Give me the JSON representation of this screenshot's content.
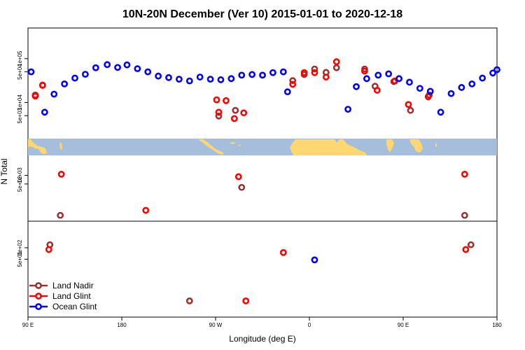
{
  "chart_data": {
    "type": "scatter",
    "title": "10N-20N December (Ver 10)   2015-01-01 to 2020-12-18",
    "xlabel": "Longitude (deg E)",
    "ylabel": "N Total",
    "x_ticks": [
      {
        "value": 90,
        "label": "90 E"
      },
      {
        "value": 180,
        "label": "180"
      },
      {
        "value": 270,
        "label": "90 W"
      },
      {
        "value": 360,
        "label": "0"
      },
      {
        "value": 450,
        "label": "90 E"
      },
      {
        "value": 540,
        "label": "180"
      }
    ],
    "xlim": [
      90,
      540
    ],
    "panels": [
      {
        "name": "upper",
        "scale": "log",
        "ylim": [
          1500,
          500000
        ],
        "ticks": [
          {
            "value": 5000,
            "label": "5e+03"
          },
          {
            "value": 10000,
            "label": "1e+04"
          },
          {
            "value": 50000,
            "label": "5e+04"
          },
          {
            "value": 100000,
            "label": "1e+05"
          }
        ]
      },
      {
        "name": "middle",
        "scale": "log",
        "ylim": [
          25,
          5000
        ],
        "ticks": [
          {
            "value": 500,
            "label": "5e+02"
          },
          {
            "value": 1000,
            "label": "1e+03"
          }
        ]
      },
      {
        "name": "lower",
        "scale": "log",
        "ylim": [
          1.5,
          500
        ],
        "ticks": [
          {
            "value": 50,
            "label": "5e+01"
          },
          {
            "value": 100,
            "label": "1e+02"
          }
        ]
      }
    ],
    "series": [
      {
        "name": "Land Nadir",
        "color": "#993333",
        "points": [
          [
            97,
            14800,
            "upper"
          ],
          [
            104,
            24500,
            "upper"
          ],
          [
            121,
            40,
            "middle"
          ],
          [
            273,
            4900,
            "upper"
          ],
          [
            289,
            6600,
            "upper"
          ],
          [
            295,
            380,
            "middle"
          ],
          [
            245,
            4,
            "lower"
          ],
          [
            111,
            120,
            "lower"
          ],
          [
            344,
            31500,
            "upper"
          ],
          [
            355,
            43500,
            "upper"
          ],
          [
            365,
            58000,
            "upper"
          ],
          [
            376,
            48500,
            "upper"
          ],
          [
            386,
            62000,
            "upper"
          ],
          [
            413,
            58000,
            "upper"
          ],
          [
            423,
            23500,
            "upper"
          ],
          [
            441,
            30000,
            "upper"
          ],
          [
            457,
            6600,
            "upper"
          ],
          [
            475,
            14800,
            "upper"
          ],
          [
            509,
            40,
            "middle"
          ],
          [
            515,
            120,
            "lower"
          ]
        ]
      },
      {
        "name": "Land Glint",
        "color": "#ff0000",
        "points": [
          [
            97,
            14000,
            "upper"
          ],
          [
            104,
            25000,
            "upper"
          ],
          [
            122,
            1100,
            "middle"
          ],
          [
            110,
            90,
            "lower"
          ],
          [
            203,
            60,
            "middle"
          ],
          [
            273,
            6000,
            "upper"
          ],
          [
            280,
            11000,
            "upper"
          ],
          [
            271,
            11500,
            "upper"
          ],
          [
            288,
            4300,
            "upper"
          ],
          [
            297,
            5800,
            "upper"
          ],
          [
            292,
            900,
            "middle"
          ],
          [
            299,
            4,
            "lower"
          ],
          [
            335,
            75,
            "lower"
          ],
          [
            344,
            26000,
            "upper"
          ],
          [
            355,
            48000,
            "upper"
          ],
          [
            365,
            48000,
            "upper"
          ],
          [
            376,
            38000,
            "upper"
          ],
          [
            386,
            85000,
            "upper"
          ],
          [
            413,
            52000,
            "upper"
          ],
          [
            425,
            19000,
            "upper"
          ],
          [
            442,
            31000,
            "upper"
          ],
          [
            455,
            9000,
            "upper"
          ],
          [
            474,
            13500,
            "upper"
          ],
          [
            509,
            1100,
            "middle"
          ],
          [
            510,
            90,
            "lower"
          ]
        ]
      },
      {
        "name": "Ocean Glint",
        "color": "#0000ff",
        "points": [
          [
            93,
            50000,
            "upper"
          ],
          [
            106,
            6000,
            "upper"
          ],
          [
            115,
            15500,
            "upper"
          ],
          [
            125,
            26500,
            "upper"
          ],
          [
            135,
            36000,
            "upper"
          ],
          [
            145,
            44000,
            "upper"
          ],
          [
            155,
            62000,
            "upper"
          ],
          [
            166,
            73000,
            "upper"
          ],
          [
            176,
            63000,
            "upper"
          ],
          [
            185,
            72000,
            "upper"
          ],
          [
            195,
            59000,
            "upper"
          ],
          [
            205,
            50000,
            "upper"
          ],
          [
            215,
            40000,
            "upper"
          ],
          [
            225,
            37000,
            "upper"
          ],
          [
            235,
            34000,
            "upper"
          ],
          [
            245,
            31000,
            "upper"
          ],
          [
            255,
            38000,
            "upper"
          ],
          [
            265,
            34000,
            "upper"
          ],
          [
            275,
            33000,
            "upper"
          ],
          [
            285,
            35000,
            "upper"
          ],
          [
            295,
            42000,
            "upper"
          ],
          [
            305,
            43500,
            "upper"
          ],
          [
            315,
            42000,
            "upper"
          ],
          [
            325,
            48000,
            "upper"
          ],
          [
            335,
            50000,
            "upper"
          ],
          [
            339,
            17500,
            "upper"
          ],
          [
            365,
            48,
            "lower"
          ],
          [
            397,
            7000,
            "upper"
          ],
          [
            405,
            23000,
            "upper"
          ],
          [
            415,
            35000,
            "upper"
          ],
          [
            426,
            42000,
            "upper"
          ],
          [
            436,
            45000,
            "upper"
          ],
          [
            446,
            35000,
            "upper"
          ],
          [
            456,
            29000,
            "upper"
          ],
          [
            466,
            21000,
            "upper"
          ],
          [
            476,
            18000,
            "upper"
          ],
          [
            486,
            6000,
            "upper"
          ],
          [
            496,
            16000,
            "upper"
          ],
          [
            506,
            22000,
            "upper"
          ],
          [
            516,
            26500,
            "upper"
          ],
          [
            526,
            36000,
            "upper"
          ],
          [
            536,
            47000,
            "upper"
          ],
          [
            540,
            56000,
            "upper"
          ]
        ]
      }
    ],
    "legend": {
      "position": "bottom-left"
    },
    "map_strip": {
      "ocean_color": "#a4bedb",
      "land_color": "#ffd770"
    }
  }
}
